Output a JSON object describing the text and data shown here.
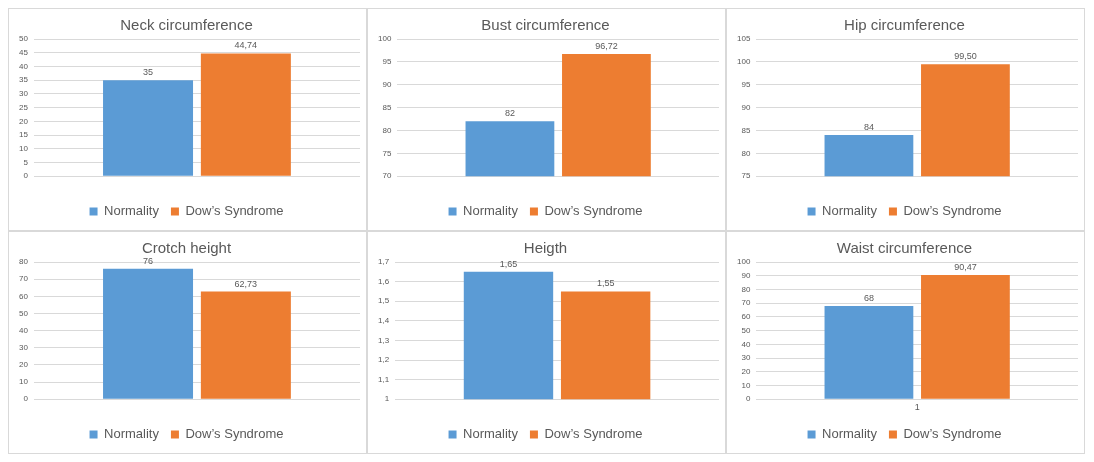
{
  "chart_data": [
    {
      "type": "bar",
      "title": "Neck circumference",
      "categories": [
        null
      ],
      "ylim": [
        0,
        50
      ],
      "yticks": [
        0,
        5,
        10,
        15,
        20,
        25,
        30,
        35,
        40,
        45,
        50
      ],
      "grid": "y",
      "legend": "bottom",
      "series": [
        {
          "name": "Normality",
          "color": "#5b9bd5",
          "values": [
            35
          ],
          "value_labels": [
            "35"
          ]
        },
        {
          "name": "Dow’s Syndrome",
          "color": "#ed7d31",
          "values": [
            44.74
          ],
          "value_labels": [
            "44,74"
          ]
        }
      ]
    },
    {
      "type": "bar",
      "title": "Bust circumference",
      "categories": [
        null
      ],
      "ylim": [
        70,
        100
      ],
      "yticks": [
        70,
        75,
        80,
        85,
        90,
        95,
        100
      ],
      "grid": "y",
      "legend": "bottom",
      "series": [
        {
          "name": "Normality",
          "color": "#5b9bd5",
          "values": [
            82
          ],
          "value_labels": [
            "82"
          ]
        },
        {
          "name": "Dow’s Syndrome",
          "color": "#ed7d31",
          "values": [
            96.72
          ],
          "value_labels": [
            "96,72"
          ]
        }
      ]
    },
    {
      "type": "bar",
      "title": "Hip circumference",
      "categories": [
        null
      ],
      "ylim": [
        75,
        105
      ],
      "yticks": [
        75,
        80,
        85,
        90,
        95,
        100,
        105
      ],
      "grid": "y",
      "legend": "bottom",
      "series": [
        {
          "name": "Normality",
          "color": "#5b9bd5",
          "values": [
            84
          ],
          "value_labels": [
            "84"
          ]
        },
        {
          "name": "Dow’s Syndrome",
          "color": "#ed7d31",
          "values": [
            99.5
          ],
          "value_labels": [
            "99,50"
          ]
        }
      ]
    },
    {
      "type": "bar",
      "title": "Crotch height",
      "categories": [
        null
      ],
      "ylim": [
        0,
        80
      ],
      "yticks": [
        0,
        10,
        20,
        30,
        40,
        50,
        60,
        70,
        80
      ],
      "grid": "y",
      "legend": "bottom",
      "series": [
        {
          "name": "Normality",
          "color": "#5b9bd5",
          "values": [
            76
          ],
          "value_labels": [
            "76"
          ]
        },
        {
          "name": "Dow’s Syndrome",
          "color": "#ed7d31",
          "values": [
            62.73
          ],
          "value_labels": [
            "62,73"
          ]
        }
      ]
    },
    {
      "type": "bar",
      "title": "Heigth",
      "categories": [
        null
      ],
      "ylim": [
        1,
        1.7
      ],
      "yticks": [
        1,
        {
          "value": 1.1,
          "label": "1,1"
        },
        {
          "value": 1.2,
          "label": "1,2"
        },
        {
          "value": 1.3,
          "label": "1,3"
        },
        {
          "value": 1.4,
          "label": "1,4"
        },
        {
          "value": 1.5,
          "label": "1,5"
        },
        {
          "value": 1.6,
          "label": "1,6"
        },
        {
          "value": 1.7,
          "label": "1,7"
        }
      ],
      "grid": "y",
      "legend": "bottom",
      "series": [
        {
          "name": "Normality",
          "color": "#5b9bd5",
          "values": [
            1.65
          ],
          "value_labels": [
            "1,65"
          ]
        },
        {
          "name": "Dow’s Syndrome",
          "color": "#ed7d31",
          "values": [
            1.55
          ],
          "value_labels": [
            "1,55"
          ]
        }
      ]
    },
    {
      "type": "bar",
      "title": "Waist circumference",
      "categories": [
        "1"
      ],
      "ylim": [
        0,
        100
      ],
      "yticks": [
        0,
        10,
        20,
        30,
        40,
        50,
        60,
        70,
        80,
        90,
        100
      ],
      "grid": "y",
      "legend": "bottom",
      "series": [
        {
          "name": "Normality",
          "color": "#5b9bd5",
          "values": [
            68
          ],
          "value_labels": [
            "68"
          ]
        },
        {
          "name": "Dow’s Syndrome",
          "color": "#ed7d31",
          "values": [
            90.47
          ],
          "value_labels": [
            "90,47"
          ]
        }
      ]
    }
  ]
}
